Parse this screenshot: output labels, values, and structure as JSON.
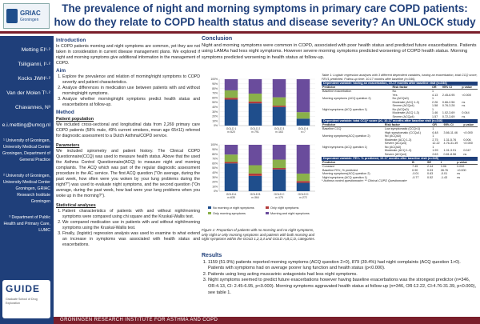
{
  "header": {
    "logo_text": "GRIAC",
    "logo_sub": "Groningen",
    "title": "The prevalence of night and morning symptoms in primary care COPD patients: how do they relate to COPD health status and disease severity? An UNLOCK study"
  },
  "sidebar": {
    "authors": [
      "Metting EI¹·²",
      "Tsiligianni, I¹·²",
      "Kocks JWH¹·²",
      "Van der Molen T¹·²",
      "Chavannes, N³"
    ],
    "email": "e.i.metting@umcg.nl",
    "affiliations": [
      "¹ University of Groningen, University Medical Center Groningen, Department of General Practice",
      "² University of Groningen, University Medical Center Groningen, GRIAC Research Institute Groningen",
      "³ Department of Public Health and Primary Care, LUMC"
    ],
    "guide_logo": "GUIDE",
    "guide_sub": "Graduate School of Drug Exploration"
  },
  "intro": {
    "heading": "Introduction",
    "text": "In COPD patients morning and night symptoms are common, yet they are not taken in consideration in current disease management plans. We explored if night and morning symptoms give additional information in the management of COPD."
  },
  "aim": {
    "heading": "Aim",
    "items": [
      "Explore the prevalence and relation of morning/night symptoms to COPD severity and patient characteristics.",
      "Analyze differences in medication use between patients with and without morning/night symptoms.",
      "Analyze whether morning/night symptoms predict health status and exacerbations at follow-up."
    ]
  },
  "method": {
    "heading": "Method",
    "pp_heading": "Patient population",
    "pp_text": "We included cross-sectional and longitudinal data from 2,269 primary care COPD patients (58% male, 49% current smokers, mean age 65±11) referred for diagnostic assessment to a Dutch Asthma/COPD service.",
    "param_heading": "Parameters",
    "param_text": "We included spirometry and patient history. The Clinical COPD Questionnaire(CCQ) was used to measure health status. Above that the used the Asthma Control Questionnaire(ACQ) to measure night and morning complaints. The ACQ which was part of the regular diagnostic assessment procedure in the AC service. The first ACQ question (\"On average, during the past week, how often were you woken by your lung problems during the night?\") was used to evaluate night symptoms, and the second question (\"On average, during the past week, how bad were your lung problems when you woke up in the morning?\").",
    "stat_heading": "Statistical analyses",
    "stat_items": [
      "Patient characteristics of patients with and without night/morning symptoms were compared using chi square and the Kruskal-Wallis test.",
      "We compared medication use in patients with and without night/morning symptoms using the Kruskal-Wallis test.",
      "Finally, (logistic) regression analysis was used to examine to what extend an increase in symptoms was associated with health status and exacerbations."
    ]
  },
  "conclusion": {
    "heading": "Conclusion",
    "text": "Night and morning symptoms were common in COPD, associated with poor health status and predicted future exacerbations. Patients using LAMAs had less night symptoms. However severe morning symptoms predicted worsening of COPD health status. Morning symptoms predicted worsening in health status at follow-up."
  },
  "figure": {
    "caption": "Figure 1: Proportion of patients with no morning and no night symptoms, only night or only morning symptoms and patients with both morning and night symptoms within the GOLD 1,2,3,4 and GOLD A,B,C,D, categories."
  },
  "chart_data": {
    "type": "bar",
    "ylim": [
      0,
      100
    ],
    "yticks": [
      "0%",
      "10%",
      "20%",
      "30%",
      "40%",
      "50%",
      "60%",
      "70%",
      "80%",
      "90%",
      "100%"
    ],
    "panels": [
      {
        "categories": [
          "GOLD 1 n=520",
          "GOLD 2 n=791",
          "GOLD 3 n=163",
          "GOLD 4 n=7"
        ]
      },
      {
        "categories": [
          "GOLD A n=635",
          "GOLD B n=364",
          "GOLD C n=175",
          "GOLD D n=272"
        ]
      }
    ],
    "series": [
      {
        "name": "No morning or night symptoms",
        "color": "#1f4e8c",
        "panel1": [
          56,
          48,
          40,
          15
        ],
        "panel2": [
          60,
          33,
          47,
          18
        ]
      },
      {
        "name": "Only night symptoms",
        "color": "#b23a3a",
        "panel1": [
          4,
          4,
          3,
          0
        ],
        "panel2": [
          3,
          5,
          3,
          4
        ]
      },
      {
        "name": "Only morning symptoms",
        "color": "#8ab04a",
        "panel1": [
          16,
          17,
          18,
          14
        ],
        "panel2": [
          16,
          18,
          18,
          16
        ]
      },
      {
        "name": "Morning and night symptoms",
        "color": "#6a4c9c",
        "panel1": [
          24,
          31,
          39,
          71
        ],
        "panel2": [
          21,
          44,
          32,
          62
        ]
      }
    ],
    "legend_position": "bottom"
  },
  "table": {
    "caption": "Table 1: Logistic regression analyses with 3 different dependent variables, having an exacerbation, total CCQ score, FEV1 predicted. Follow-up time: 10-17 months after baseline (n=346).",
    "sections": [
      {
        "title": "Dependent variable: having an exacerbation, 10-17 months after baseline visit (n=346)",
        "headers": [
          "Predictor",
          "Risk factor",
          "OR",
          "95% CI",
          "p value"
        ],
        "rows": [
          [
            "Baseline exacerbation",
            "No",
            "1",
            "",
            ""
          ],
          [
            "",
            "Yes",
            "4.13",
            "2.45-6.95",
            "<0.000"
          ],
          [
            "Morning symptoms (ACQ question 2)",
            "No (ACQ≤0)",
            "1",
            "",
            ""
          ],
          [
            "",
            "Moderate (ACQ 1-3)",
            "2.26",
            "0.66-2.56",
            "ns"
          ],
          [
            "",
            "Severe (ACQ≥4)",
            "1.58",
            "0.76-3.28",
            "ns"
          ],
          [
            "Night symptoms (ACQ question 1)",
            "No (ACQ≤0)",
            "1",
            "",
            ""
          ],
          [
            "",
            "Moderate (ACQ 1-3)",
            "1.46",
            "1.02-3.69",
            "0.044"
          ],
          [
            "",
            "Severe (ACQ≥4)",
            "1.57",
            "0.72-3.69",
            "ns"
          ]
        ]
      },
      {
        "title": "Dependent variable: total CCQ* score (≥1, 10-17 months after baseline visit (n=346)",
        "headers": [
          "Predictor",
          "Risk factor",
          "OR",
          "95% CI",
          "p value"
        ],
        "rows": [
          [
            "Baseline CCQ",
            "Low symptomatic (CCQ<1)",
            "1",
            "",
            ""
          ],
          [
            "",
            "High symptomatic (CCQ≥1)",
            "6.48",
            "3.66-11.46",
            "<0.000"
          ],
          [
            "Morning symptoms(ACQ question 2)",
            "No (ACQ≤0)",
            "1",
            "",
            ""
          ],
          [
            "",
            "Moderate (ACQ 1-3)",
            "2.75",
            "1.31-5.76",
            "0.006"
          ],
          [
            "",
            "Severe (ACQ≥4)",
            "12.22",
            "4.76-31.39",
            "<0.000"
          ],
          [
            "Night symptoms (ACQ question 1)",
            "No (ACQ≤0)",
            "1",
            "",
            ""
          ],
          [
            "",
            "Moderate (ACQ 1-3)",
            "1.99",
            "1.01-3.91",
            "0.047"
          ],
          [
            "",
            "Severe (ACQ≥4)",
            "2.63",
            "0.81-8.56",
            "ns"
          ]
        ]
      },
      {
        "title": "Dependent variable: FEV₁ % predicted, 10-17 months after baseline visit (n=345)",
        "headers": [
          "Predictor",
          "B",
          "SE",
          "t",
          "p value"
        ],
        "rows": [
          [
            "Constant",
            "7.45",
            "2.44",
            "3.06",
            "0.002"
          ],
          [
            "Baseline FEV₁ % predicted",
            "0.90",
            "0.03",
            "28.76",
            "<0.000"
          ],
          [
            "Morning symptoms(ACQ question 2)",
            "-0.01",
            "0.63",
            "-0.01",
            "ns"
          ],
          [
            "Night symptoms (ACQ question 1)",
            "-0.77",
            "0.52",
            "-1.43",
            "ns"
          ]
        ],
        "footnote": "* Asthma control questionnaire; ** Clinical COPD Questionnaire"
      }
    ]
  },
  "results": {
    "heading": "Results",
    "items": [
      "1159 (51.9%) patients reported morning symptoms (ACQ question 2>0), 879 (39.4%) had night complaints (ACQ question 1>0). Patients with symptoms had on average poorer lung function and health status (p<0.000).",
      "Patients using long acting muscarinic antagonists had less night symptoms.",
      "Night symptoms seemed to predict future exacerbations however having baseline exacerbations was the strongest predictor (n=346, OR:4.13, CI: 2.45-6.95, p<0.000). Morning symptoms aggravated health status at follow-up (n=346, OR:12.22, CI:4.76-31.39, p<0.000), see table 1."
    ]
  },
  "footer": {
    "text": "GRONINGEN RESEARCH INSTITUTE FOR ASTHMA AND COPD"
  }
}
